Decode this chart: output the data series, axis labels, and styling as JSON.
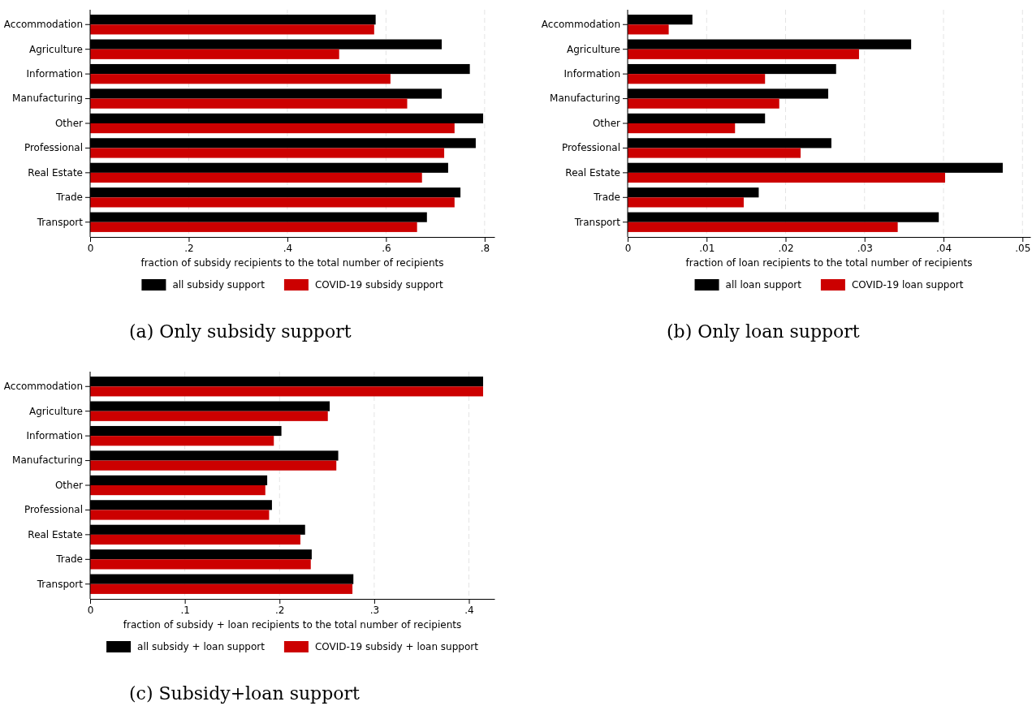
{
  "chart_data": [
    {
      "type": "bar",
      "orientation": "horizontal",
      "title": "(a) Only subsidy support",
      "xlabel": "fraction of subsidy recipients to the total number of recipients",
      "categories": [
        "Accommodation",
        "Agriculture",
        "Information",
        "Manufacturing",
        "Other",
        "Professional",
        "Real Estate",
        "Trade",
        "Transport"
      ],
      "series": [
        {
          "name": "all subsidy support",
          "color": "#000000",
          "values": [
            0.579,
            0.713,
            0.77,
            0.713,
            0.797,
            0.782,
            0.726,
            0.751,
            0.683
          ]
        },
        {
          "name": "COVID-19 subsidy support",
          "color": "#cc0000",
          "values": [
            0.576,
            0.505,
            0.609,
            0.643,
            0.739,
            0.718,
            0.673,
            0.739,
            0.663
          ]
        }
      ],
      "xlim": [
        0,
        0.82
      ],
      "xticks": [
        {
          "value": 0,
          "label": "0"
        },
        {
          "value": 0.2,
          "label": ".2"
        },
        {
          "value": 0.4,
          "label": ".4"
        },
        {
          "value": 0.6,
          "label": ".6"
        },
        {
          "value": 0.8,
          "label": ".8"
        }
      ],
      "grid": "x",
      "legend": "bottom"
    },
    {
      "type": "bar",
      "orientation": "horizontal",
      "title": "(b) Only loan support",
      "xlabel": "fraction of loan recipients to the total number of recipients",
      "categories": [
        "Accommodation",
        "Agriculture",
        "Information",
        "Manufacturing",
        "Other",
        "Professional",
        "Real Estate",
        "Trade",
        "Transport"
      ],
      "series": [
        {
          "name": "all loan support",
          "color": "#000000",
          "values": [
            0.0082,
            0.0359,
            0.0264,
            0.0254,
            0.0174,
            0.0258,
            0.0475,
            0.0166,
            0.0394
          ]
        },
        {
          "name": "COVID-19 loan support",
          "color": "#cc0000",
          "values": [
            0.0052,
            0.0293,
            0.0174,
            0.0192,
            0.0136,
            0.0219,
            0.0402,
            0.0147,
            0.0342
          ]
        }
      ],
      "xlim": [
        0,
        0.051
      ],
      "xticks": [
        {
          "value": 0,
          "label": "0"
        },
        {
          "value": 0.01,
          "label": ".01"
        },
        {
          "value": 0.02,
          "label": ".02"
        },
        {
          "value": 0.03,
          "label": ".03"
        },
        {
          "value": 0.04,
          "label": ".04"
        },
        {
          "value": 0.05,
          "label": ".05"
        }
      ],
      "grid": "x",
      "legend": "bottom"
    },
    {
      "type": "bar",
      "orientation": "horizontal",
      "title": "(c) Subsidy+loan support",
      "xlabel": "fraction of subsidy + loan recipients to the total number of recipients",
      "categories": [
        "Accommodation",
        "Agriculture",
        "Information",
        "Manufacturing",
        "Other",
        "Professional",
        "Real Estate",
        "Trade",
        "Transport"
      ],
      "series": [
        {
          "name": "all subsidy + loan support",
          "color": "#000000",
          "values": [
            0.415,
            0.253,
            0.202,
            0.262,
            0.187,
            0.192,
            0.227,
            0.234,
            0.278
          ]
        },
        {
          "name": "COVID-19 subsidy + loan support",
          "color": "#cc0000",
          "values": [
            0.415,
            0.251,
            0.194,
            0.26,
            0.185,
            0.189,
            0.222,
            0.233,
            0.277
          ]
        }
      ],
      "xlim": [
        0,
        0.427
      ],
      "xticks": [
        {
          "value": 0,
          "label": "0"
        },
        {
          "value": 0.1,
          "label": ".1"
        },
        {
          "value": 0.2,
          "label": ".2"
        },
        {
          "value": 0.3,
          "label": ".3"
        },
        {
          "value": 0.4,
          "label": ".4"
        }
      ],
      "grid": "x",
      "legend": "bottom"
    }
  ]
}
